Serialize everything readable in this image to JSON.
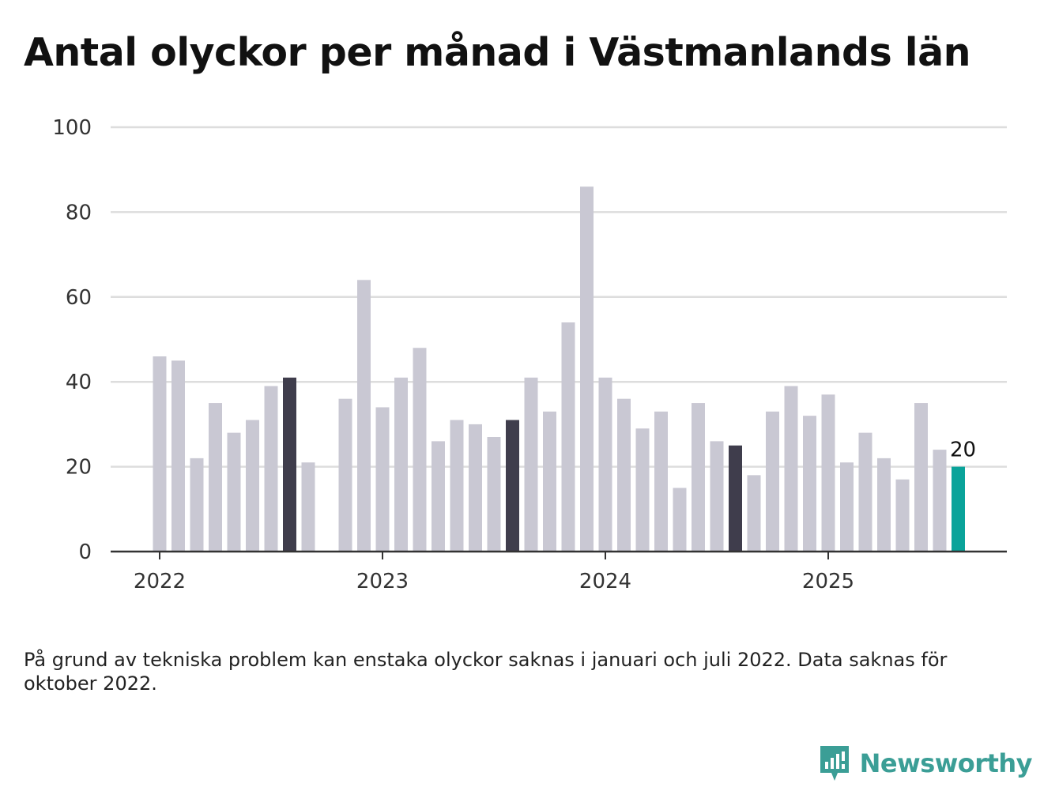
{
  "title": "Antal olyckor per månad i Västmanlands län",
  "footnote": "På grund av tekniska problem kan enstaka olyckor saknas i januari och juli 2022. Data saknas för oktober 2022.",
  "brand": {
    "name": "Newsworthy",
    "color": "#3b9e96"
  },
  "colors": {
    "default_bar": "#c9c8d3",
    "highlight_bar": "#3f3d4c",
    "latest_bar": "#0aa39a",
    "grid": "#dddddd",
    "axis": "#333333"
  },
  "chart_data": {
    "type": "bar",
    "ylim": [
      0,
      100
    ],
    "yticks": [
      0,
      20,
      40,
      60,
      80,
      100
    ],
    "xticks": [
      {
        "label": "2022",
        "x": "2022-01"
      },
      {
        "label": "2023",
        "x": "2023-01"
      },
      {
        "label": "2024",
        "x": "2024-01"
      },
      {
        "label": "2025",
        "x": "2025-01"
      }
    ],
    "grid": true,
    "highlight_note": "August bars in dark; latest month in teal with value label",
    "points": [
      {
        "x": "2022-01",
        "y": 46
      },
      {
        "x": "2022-02",
        "y": 45
      },
      {
        "x": "2022-03",
        "y": 22
      },
      {
        "x": "2022-04",
        "y": 35
      },
      {
        "x": "2022-05",
        "y": 28
      },
      {
        "x": "2022-06",
        "y": 31
      },
      {
        "x": "2022-07",
        "y": 39
      },
      {
        "x": "2022-08",
        "y": 41,
        "highlight": "dark"
      },
      {
        "x": "2022-09",
        "y": 21
      },
      {
        "x": "2022-10",
        "y": null
      },
      {
        "x": "2022-11",
        "y": 36
      },
      {
        "x": "2022-12",
        "y": 64
      },
      {
        "x": "2023-01",
        "y": 34
      },
      {
        "x": "2023-02",
        "y": 41
      },
      {
        "x": "2023-03",
        "y": 48
      },
      {
        "x": "2023-04",
        "y": 26
      },
      {
        "x": "2023-05",
        "y": 31
      },
      {
        "x": "2023-06",
        "y": 30
      },
      {
        "x": "2023-07",
        "y": 27
      },
      {
        "x": "2023-08",
        "y": 31,
        "highlight": "dark"
      },
      {
        "x": "2023-09",
        "y": 41
      },
      {
        "x": "2023-10",
        "y": 33
      },
      {
        "x": "2023-11",
        "y": 54
      },
      {
        "x": "2023-12",
        "y": 86
      },
      {
        "x": "2024-01",
        "y": 41
      },
      {
        "x": "2024-02",
        "y": 36
      },
      {
        "x": "2024-03",
        "y": 29
      },
      {
        "x": "2024-04",
        "y": 33
      },
      {
        "x": "2024-05",
        "y": 15
      },
      {
        "x": "2024-06",
        "y": 35
      },
      {
        "x": "2024-07",
        "y": 26
      },
      {
        "x": "2024-08",
        "y": 25,
        "highlight": "dark"
      },
      {
        "x": "2024-09",
        "y": 18
      },
      {
        "x": "2024-10",
        "y": 33
      },
      {
        "x": "2024-11",
        "y": 39
      },
      {
        "x": "2024-12",
        "y": 32
      },
      {
        "x": "2025-01",
        "y": 37
      },
      {
        "x": "2025-02",
        "y": 21
      },
      {
        "x": "2025-03",
        "y": 28
      },
      {
        "x": "2025-04",
        "y": 22
      },
      {
        "x": "2025-05",
        "y": 17
      },
      {
        "x": "2025-06",
        "y": 35
      },
      {
        "x": "2025-07",
        "y": 24
      },
      {
        "x": "2025-08",
        "y": 20,
        "highlight": "latest",
        "label": "20"
      }
    ]
  }
}
